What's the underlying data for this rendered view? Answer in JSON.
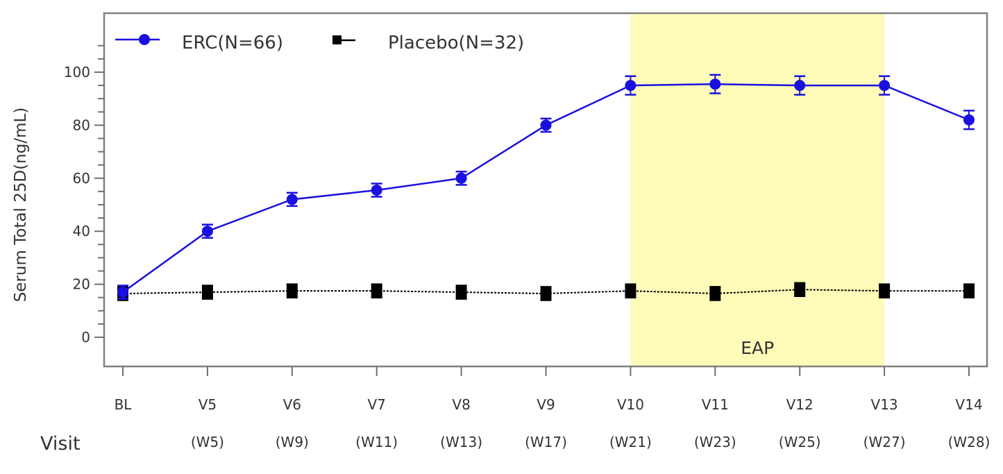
{
  "chart_data": {
    "type": "line",
    "title": "",
    "xlabel": "Visit",
    "ylabel": "Serum Total 25D(ng/mL)",
    "ylim": [
      -12,
      122
    ],
    "yticks": [
      0,
      20,
      40,
      60,
      80,
      100
    ],
    "yminor_step": 5,
    "yminor_max": 110,
    "grid": false,
    "legend_position": "top-left",
    "categories": [
      "BL",
      "V5",
      "V6",
      "V7",
      "V8",
      "V9",
      "V10",
      "V11",
      "V12",
      "V13",
      "V14"
    ],
    "category_sublabels": [
      "",
      "(W5)",
      "(W9)",
      "(W11)",
      "(W13)",
      "(W17)",
      "(W21)",
      "(W23)",
      "(W25)",
      "(W27)",
      "(W28)"
    ],
    "series": [
      {
        "name": "ERC(N=66)",
        "color": "#1a10e0",
        "marker": "circle",
        "line_style": "solid",
        "values": [
          17,
          40,
          52,
          55.5,
          60,
          80,
          95,
          95.5,
          95,
          95,
          82
        ],
        "error": [
          2.5,
          2.5,
          2.5,
          2.5,
          2.5,
          2.5,
          3.5,
          3.5,
          3.5,
          3.5,
          3.5
        ]
      },
      {
        "name": "Placebo(N=32)",
        "color": "#000000",
        "marker": "square",
        "line_style": "dotted",
        "values": [
          16.5,
          17,
          17.5,
          17.5,
          17,
          16.5,
          17.5,
          16.5,
          18,
          17.5,
          17.5
        ],
        "error": [
          2.5,
          2.5,
          2.5,
          2.5,
          2.5,
          2.5,
          2.5,
          2.5,
          2.5,
          2.5,
          2.5
        ]
      }
    ],
    "shaded_region": {
      "label": "EAP",
      "from": "V10",
      "to": "V13",
      "color": "#fffbb8"
    }
  }
}
